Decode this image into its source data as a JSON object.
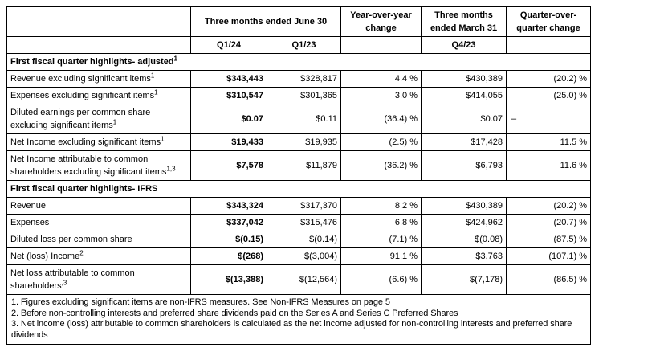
{
  "table": {
    "border_color": "#000000",
    "text_color": "#000000",
    "background_color": "#ffffff",
    "header": {
      "group_june": "Three months ended June 30",
      "yoy": "Year-over-year change",
      "group_march": "Three months ended March 31",
      "qoq": "Quarter-over-quarter change",
      "q1_24": "Q1/24",
      "q1_23": "Q1/23",
      "q4_23": "Q4/23"
    },
    "sections": [
      {
        "title": "First fiscal quarter highlights- adjusted",
        "title_sup": "1",
        "rows": [
          {
            "label": "Revenue excluding significant items",
            "sup": "1",
            "q1_24": "$343,443",
            "q1_23": "$328,817",
            "yoy": "4.4 %",
            "q4_23": "$430,389",
            "qoq": "(20.2) %"
          },
          {
            "label": "Expenses excluding significant items",
            "sup": "1",
            "q1_24": "$310,547",
            "q1_23": "$301,365",
            "yoy": "3.0 %",
            "q4_23": "$414,055",
            "qoq": "(25.0) %"
          },
          {
            "label": "Diluted earnings per common share excluding significant items",
            "sup": "1",
            "q1_24": "$0.07",
            "q1_23": "$0.11",
            "yoy": "(36.4) %",
            "q4_23": "$0.07",
            "qoq": "–"
          },
          {
            "label": "Net Income excluding significant items",
            "sup": "1",
            "q1_24": "$19,433",
            "q1_23": "$19,935",
            "yoy": "(2.5) %",
            "q4_23": "$17,428",
            "qoq": "11.5 %"
          },
          {
            "label": "Net Income attributable to common shareholders excluding significant items",
            "sup": "1,3",
            "q1_24": "$7,578",
            "q1_23": "$11,879",
            "yoy": "(36.2) %",
            "q4_23": "$6,793",
            "qoq": "11.6 %"
          }
        ]
      },
      {
        "title": "First fiscal quarter highlights- IFRS",
        "title_sup": "",
        "rows": [
          {
            "label": "Revenue",
            "sup": "",
            "q1_24": "$343,324",
            "q1_23": "$317,370",
            "yoy": "8.2 %",
            "q4_23": "$430,389",
            "qoq": "(20.2) %"
          },
          {
            "label": "Expenses",
            "sup": "",
            "q1_24": "$337,042",
            "q1_23": "$315,476",
            "yoy": "6.8 %",
            "q4_23": "$424,962",
            "qoq": "(20.7) %"
          },
          {
            "label": "Diluted loss per common share",
            "sup": "",
            "q1_24": "$(0.15)",
            "q1_23": "$(0.14)",
            "yoy": "(7.1) %",
            "q4_23": "$(0.08)",
            "qoq": "(87.5) %"
          },
          {
            "label": "Net (loss) Income",
            "sup": "2",
            "q1_24": "$(268)",
            "q1_23": "$(3,004)",
            "yoy": "91.1 %",
            "q4_23": "$3,763",
            "qoq": "(107.1) %"
          },
          {
            "label": "Net loss attributable to common shareholders",
            "sup": ",3",
            "q1_24": "$(13,388)",
            "q1_23": "$(12,564)",
            "yoy": "(6.6) %",
            "q4_23": "$(7,178)",
            "qoq": "(86.5) %"
          }
        ]
      }
    ],
    "footnotes": [
      "1. Figures excluding significant items are non-IFRS measures. See Non-IFRS Measures on page 5",
      "2. Before non-controlling interests and preferred share dividends paid on the Series A and Series C Preferred Shares",
      "3. Net income (loss) attributable to common shareholders is calculated as the net income adjusted for non-controlling interests and preferred share dividends"
    ]
  }
}
